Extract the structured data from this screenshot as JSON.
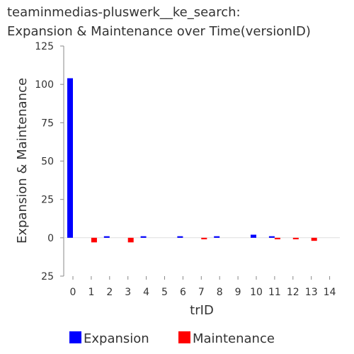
{
  "chart_data": {
    "type": "bar",
    "title": [
      "teaminmedias-pluswerk__ke_search:",
      "Expansion & Maintenance over Time(versionID)"
    ],
    "xlabel": "trID",
    "ylabel": "Expansion & Maintenance",
    "categories": [
      "0",
      "1",
      "2",
      "3",
      "4",
      "5",
      "6",
      "7",
      "8",
      "9",
      "10",
      "11",
      "12",
      "13",
      "14"
    ],
    "ylim": [
      -25,
      125
    ],
    "yticks": [
      125,
      100,
      75,
      50,
      25,
      0,
      -25
    ],
    "ytick_labels": [
      "125",
      "100",
      "75",
      "50",
      "25",
      "0",
      "25"
    ],
    "legend": "bottom",
    "grid": false,
    "series": [
      {
        "name": "Expansion",
        "color": "#0000ff",
        "values": [
          104,
          0,
          1,
          0,
          1,
          0,
          1,
          0,
          1,
          0,
          2,
          1,
          0,
          0,
          0
        ]
      },
      {
        "name": "Maintenance",
        "color": "#ff0000",
        "values": [
          0,
          -3,
          0,
          -3,
          0,
          0,
          0,
          -1,
          0,
          0,
          0,
          -1,
          -1,
          -2,
          0
        ]
      }
    ]
  }
}
